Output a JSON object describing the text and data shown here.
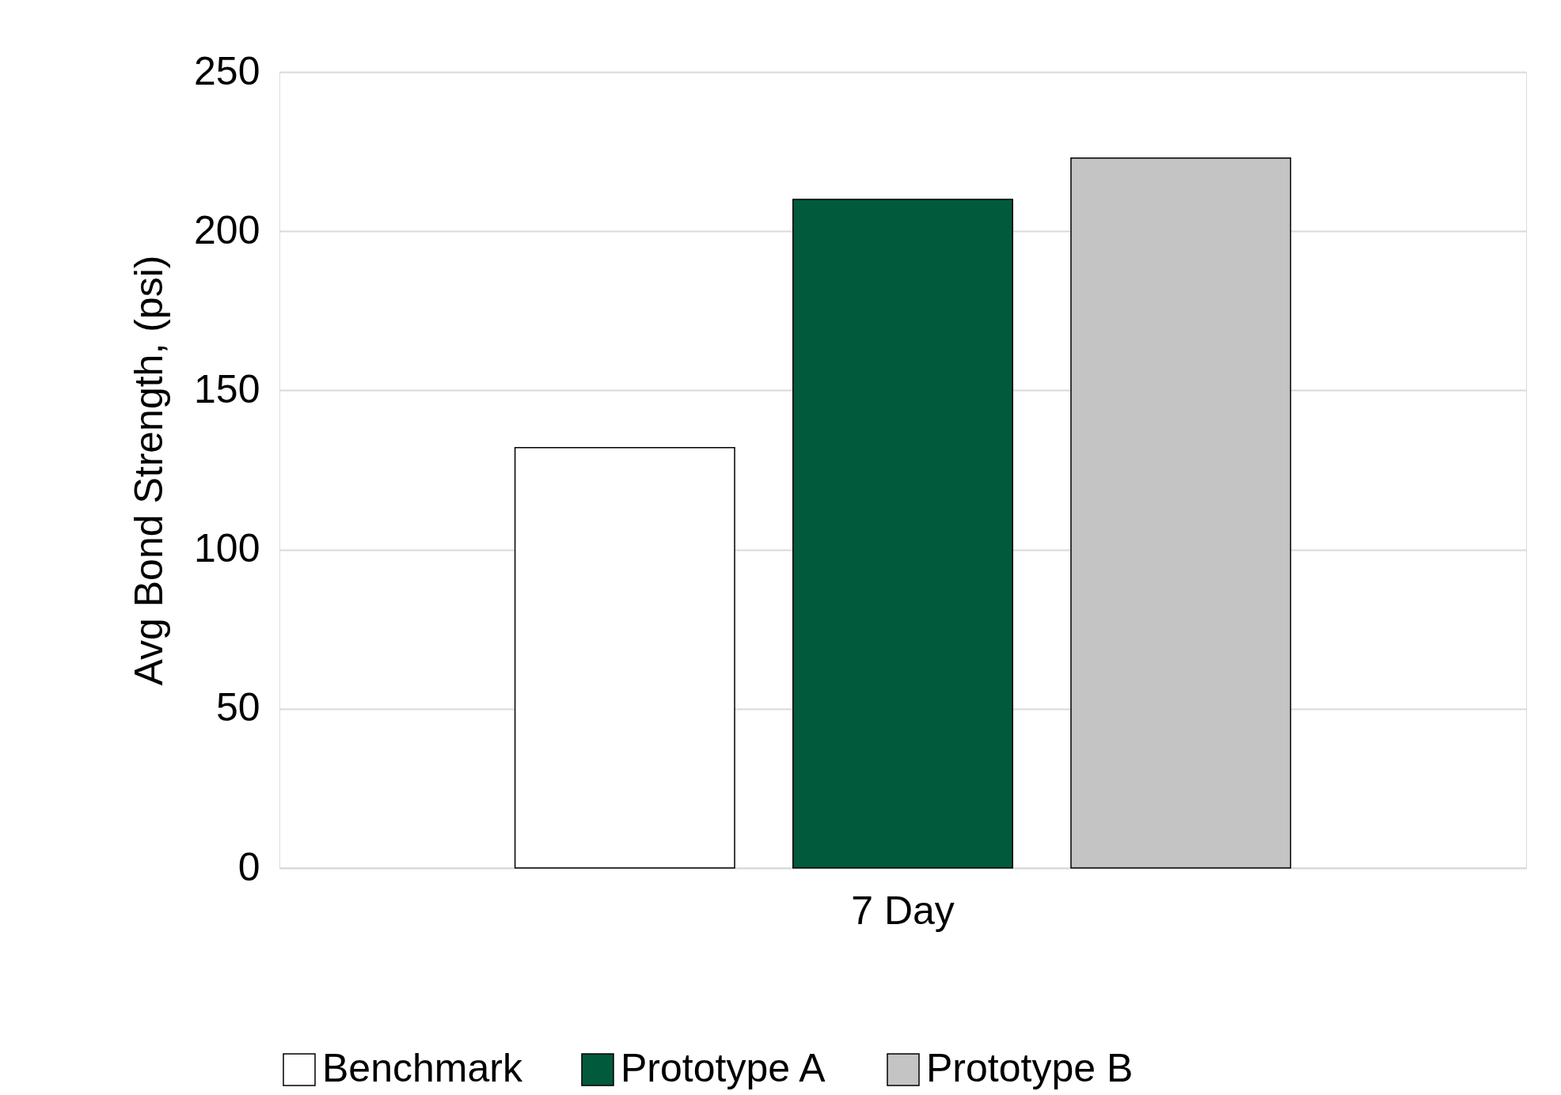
{
  "chart_data": {
    "type": "bar",
    "ylabel": "Avg Bond Strength, (psi)",
    "categories": [
      "7 Day"
    ],
    "series": [
      {
        "name": "Benchmark",
        "color": "#ffffff",
        "values": [
          132
        ]
      },
      {
        "name": "Prototype A",
        "color": "#025a3c",
        "values": [
          210
        ]
      },
      {
        "name": "Prototype B",
        "color": "#c4c4c4",
        "values": [
          223
        ]
      }
    ],
    "ylim": [
      0,
      250
    ],
    "yticks": [
      0,
      50,
      100,
      150,
      200,
      250
    ],
    "grid": "y",
    "legend": "bottom"
  }
}
